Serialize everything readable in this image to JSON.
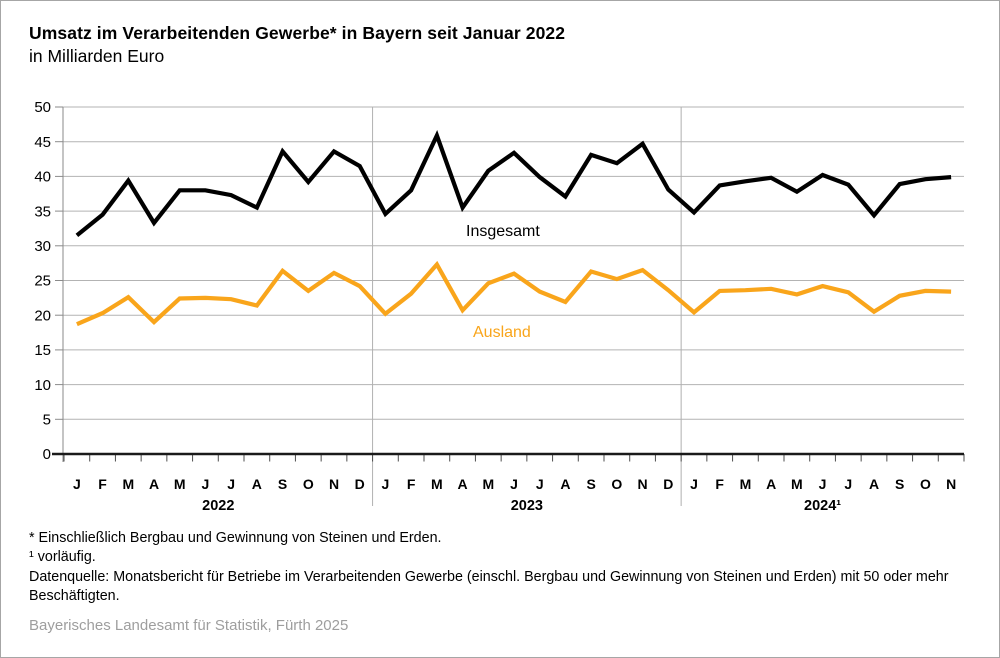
{
  "header": {
    "title": "Umsatz im Verarbeitenden Gewerbe* in Bayern seit Januar 2022",
    "subtitle": "in Milliarden Euro"
  },
  "chart_data": {
    "type": "line",
    "title": "Umsatz im Verarbeitenden Gewerbe* in Bayern seit Januar 2022",
    "subtitle": "in Milliarden Euro",
    "ylabel": "Milliarden Euro",
    "ylim": [
      0,
      50
    ],
    "y_ticks": [
      0,
      5,
      10,
      15,
      20,
      25,
      30,
      35,
      40,
      45,
      50
    ],
    "grid": "horizontal",
    "legend_position": "inline-labels",
    "x_labels": [
      "J",
      "F",
      "M",
      "A",
      "M",
      "J",
      "J",
      "A",
      "S",
      "O",
      "N",
      "D",
      "J",
      "F",
      "M",
      "A",
      "M",
      "J",
      "J",
      "A",
      "S",
      "O",
      "N",
      "D",
      "J",
      "F",
      "M",
      "A",
      "M",
      "J",
      "J",
      "A",
      "S",
      "O",
      "N"
    ],
    "year_groups": [
      {
        "label": "2022",
        "months": 12
      },
      {
        "label": "2023",
        "months": 12
      },
      {
        "label": "2024¹",
        "months": 11
      }
    ],
    "series": [
      {
        "name": "Insgesamt",
        "color": "#000000",
        "values": [
          31.5,
          34.5,
          39.4,
          33.3,
          38.0,
          38.0,
          37.3,
          35.5,
          43.6,
          39.2,
          43.6,
          41.5,
          34.6,
          38.0,
          45.9,
          35.5,
          40.8,
          43.4,
          39.9,
          37.1,
          43.1,
          41.9,
          44.7,
          38.1,
          34.8,
          38.7,
          39.3,
          39.8,
          37.8,
          40.2,
          38.8,
          34.4,
          38.9,
          39.6,
          39.9
        ]
      },
      {
        "name": "Ausland",
        "color": "#f9a51b",
        "values": [
          18.7,
          20.3,
          22.6,
          19.0,
          22.4,
          22.5,
          22.3,
          21.4,
          26.4,
          23.5,
          26.1,
          24.2,
          20.2,
          23.1,
          27.3,
          20.7,
          24.6,
          26.0,
          23.4,
          21.9,
          26.3,
          25.2,
          26.5,
          23.6,
          20.4,
          23.5,
          23.6,
          23.8,
          23.0,
          24.2,
          23.3,
          20.5,
          22.8,
          23.5,
          23.4
        ]
      }
    ]
  },
  "footnotes": {
    "asterisk": "* Einschließlich Bergbau und Gewinnung von Steinen und Erden.",
    "preliminary": "¹ vorläufig.",
    "source": "Datenquelle: Monatsbericht für Betriebe im Verarbeitenden Gewerbe (einschl. Bergbau und Gewinnung von Steinen und Erden) mit 50 oder mehr Beschäftigten."
  },
  "credit": "Bayerisches Landesamt für Statistik, Fürth 2025"
}
